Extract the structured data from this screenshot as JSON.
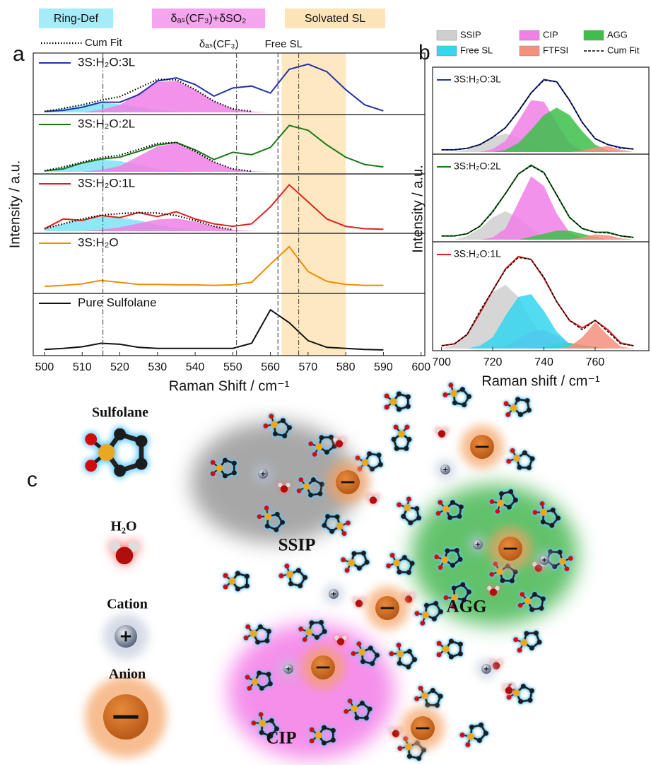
{
  "chart_data": [
    {
      "type": "line",
      "panel_label": "a",
      "xlabel": "Raman Shift / cm⁻¹",
      "ylabel": "Intensity / a.u.",
      "xlim": [
        497,
        601
      ],
      "xticks": [
        500,
        510,
        520,
        530,
        540,
        550,
        560,
        570,
        580,
        590,
        600
      ],
      "ylim": [
        0,
        1.1
      ],
      "x": [
        500,
        505,
        510,
        515,
        520,
        525,
        530,
        535,
        540,
        545,
        550,
        555,
        560,
        565,
        570,
        575,
        580,
        585,
        590
      ],
      "components": [
        {
          "name": "Ring-Def",
          "color": "#7fe3f5"
        },
        {
          "name": "δₐₛ(CF₃)+δSO₂",
          "color": "#f07fe6"
        }
      ],
      "cum_fit": "Cum Fit",
      "band": {
        "range": [
          563,
          580
        ],
        "label": "Solvated SL",
        "color": "#fbd89a"
      },
      "reference_lines": [
        {
          "value": 515.5,
          "style": "dash-dot"
        },
        {
          "value": 551,
          "style": "dash-dot",
          "label": "δₐₛ(CF₃)"
        },
        {
          "value": 562,
          "style": "dashed",
          "label": "Free SL"
        },
        {
          "value": 567.5,
          "style": "dash-dot"
        }
      ],
      "panels": [
        {
          "name": "3S:H₂O:3L",
          "color": "#2233aa",
          "values": [
            0.02,
            0.04,
            0.1,
            0.2,
            0.2,
            0.35,
            0.62,
            0.68,
            0.55,
            0.32,
            0.48,
            0.52,
            0.38,
            0.85,
            0.95,
            0.8,
            0.45,
            0.15,
            0.03
          ],
          "fits": [
            [
              0.02,
              0.08,
              0.15,
              0.19,
              0.16,
              0.1,
              0.05,
              0.02,
              0,
              0,
              0,
              0,
              0,
              0,
              0,
              0,
              0,
              0,
              0
            ],
            [
              0,
              0,
              0,
              0.05,
              0.15,
              0.38,
              0.6,
              0.62,
              0.45,
              0.22,
              0.07,
              0.02,
              0,
              0,
              0,
              0,
              0,
              0,
              0
            ]
          ],
          "cum_fit": [
            0.02,
            0.08,
            0.15,
            0.24,
            0.31,
            0.48,
            0.65,
            0.64,
            0.45,
            0.22,
            0.07,
            0.02,
            null,
            null,
            null,
            null,
            null,
            null,
            null
          ]
        },
        {
          "name": "3S:H₂O:2L",
          "color": "#1a7a1a",
          "values": [
            0.02,
            0.06,
            0.18,
            0.26,
            0.3,
            0.42,
            0.55,
            0.6,
            0.45,
            0.25,
            0.4,
            0.35,
            0.5,
            0.95,
            0.85,
            0.55,
            0.3,
            0.15,
            0.1
          ],
          "fits": [
            [
              0.02,
              0.1,
              0.2,
              0.25,
              0.22,
              0.14,
              0.06,
              0.02,
              0,
              0,
              0,
              0,
              0,
              0,
              0,
              0,
              0,
              0,
              0
            ],
            [
              0,
              0,
              0,
              0.04,
              0.12,
              0.32,
              0.52,
              0.58,
              0.42,
              0.2,
              0.06,
              0.01,
              0,
              0,
              0,
              0,
              0,
              0,
              0
            ]
          ],
          "cum_fit": [
            0.02,
            0.1,
            0.2,
            0.29,
            0.34,
            0.46,
            0.58,
            0.6,
            0.42,
            0.2,
            0.06,
            0.01,
            null,
            null,
            null,
            null,
            null,
            null,
            null
          ]
        },
        {
          "name": "3S:H₂O:1L",
          "color": "#e02020",
          "values": [
            0.05,
            0.25,
            0.22,
            0.32,
            0.28,
            0.38,
            0.3,
            0.4,
            0.25,
            0.15,
            0.1,
            0.15,
            0.5,
            0.95,
            0.6,
            0.25,
            0.1,
            0.05,
            0.04
          ],
          "fits": [
            [
              0.05,
              0.15,
              0.25,
              0.3,
              0.28,
              0.22,
              0.13,
              0.06,
              0.02,
              0,
              0,
              0,
              0,
              0,
              0,
              0,
              0,
              0,
              0
            ],
            [
              0,
              0,
              0,
              0.03,
              0.08,
              0.16,
              0.24,
              0.26,
              0.2,
              0.1,
              0.03,
              0,
              0,
              0,
              0,
              0,
              0,
              0,
              0
            ]
          ],
          "cum_fit": [
            0.05,
            0.15,
            0.25,
            0.33,
            0.36,
            0.38,
            0.37,
            0.32,
            0.22,
            0.1,
            0.03,
            null,
            null,
            null,
            null,
            null,
            null,
            null,
            null
          ]
        },
        {
          "name": "3S:H₂O",
          "color": "#f08c00",
          "values": [
            0.1,
            0.12,
            0.15,
            0.22,
            0.18,
            0.14,
            0.14,
            0.13,
            0.13,
            0.12,
            0.13,
            0.18,
            0.55,
            0.9,
            0.4,
            0.2,
            0.14,
            0.12,
            0.12
          ]
        },
        {
          "name": "Pure Sulfolane",
          "color": "#111111",
          "values": [
            0.08,
            0.1,
            0.13,
            0.2,
            0.18,
            0.12,
            0.1,
            0.1,
            0.1,
            0.1,
            0.1,
            0.2,
            0.85,
            0.6,
            0.25,
            0.12,
            0.1,
            0.08,
            0.07
          ]
        }
      ]
    },
    {
      "type": "line",
      "panel_label": "b",
      "xlabel": "Raman shift  /  cm⁻¹",
      "ylabel": "Intensity / a.u.",
      "xlim": [
        696.5,
        781
      ],
      "xticks": [
        700,
        720,
        740,
        760
      ],
      "ylim": [
        0,
        1.1
      ],
      "x": [
        700,
        705,
        710,
        715,
        720,
        725,
        730,
        735,
        740,
        745,
        750,
        755,
        760,
        765,
        770,
        775
      ],
      "components": [
        {
          "name": "SSIP",
          "color": "#cfcfcf"
        },
        {
          "name": "CIP",
          "color": "#f07fe6"
        },
        {
          "name": "AGG",
          "color": "#3cc04a"
        },
        {
          "name": "Free SL",
          "color": "#34d6f0"
        },
        {
          "name": "FTFSI",
          "color": "#f4907c"
        }
      ],
      "cum_fit": "Cum Fit",
      "panels": [
        {
          "name": "3S:H₂O:3L",
          "color": "#2233aa",
          "values": [
            0.03,
            0.03,
            0.05,
            0.1,
            0.2,
            0.33,
            0.55,
            0.8,
            0.98,
            0.95,
            0.7,
            0.4,
            0.18,
            0.1,
            0.06,
            0.04
          ],
          "fits": [
            [
              0,
              0,
              0.03,
              0.1,
              0.2,
              0.25,
              0.2,
              0.1,
              0.03,
              0,
              0,
              0,
              0,
              0,
              0,
              0
            ],
            [
              0,
              0,
              0,
              0,
              0.04,
              0.15,
              0.42,
              0.7,
              0.68,
              0.4,
              0.12,
              0.02,
              0,
              0,
              0,
              0
            ],
            [
              0,
              0,
              0,
              0,
              0,
              0.03,
              0.12,
              0.3,
              0.5,
              0.6,
              0.5,
              0.28,
              0.1,
              0.02,
              0,
              0
            ],
            null,
            [
              0,
              0,
              0,
              0,
              0,
              0,
              0,
              0,
              0,
              0,
              0,
              0.02,
              0.06,
              0.08,
              0.03,
              0
            ]
          ],
          "cum_fit": [
            0.03,
            0.03,
            0.05,
            0.1,
            0.2,
            0.33,
            0.55,
            0.8,
            0.97,
            0.95,
            0.7,
            0.4,
            0.18,
            0.1,
            0.05,
            0.04
          ]
        },
        {
          "name": "3S:H₂O:2L",
          "color": "#1a7a1a",
          "values": [
            0.05,
            0.05,
            0.08,
            0.18,
            0.38,
            0.62,
            0.88,
            1.0,
            0.9,
            0.6,
            0.3,
            0.15,
            0.1,
            0.1,
            0.05,
            0.03
          ],
          "fits": [
            [
              0,
              0,
              0.05,
              0.15,
              0.3,
              0.38,
              0.3,
              0.15,
              0.05,
              0,
              0,
              0,
              0,
              0,
              0,
              0
            ],
            [
              0,
              0,
              0,
              0,
              0.03,
              0.15,
              0.5,
              0.85,
              0.72,
              0.35,
              0.1,
              0.02,
              0,
              0,
              0,
              0
            ],
            [
              0,
              0,
              0,
              0,
              0,
              0,
              0,
              0.04,
              0.08,
              0.12,
              0.12,
              0.08,
              0.04,
              0,
              0,
              0
            ],
            null,
            [
              0,
              0,
              0,
              0,
              0,
              0,
              0,
              0,
              0,
              0,
              0,
              0.03,
              0.07,
              0.06,
              0.02,
              0
            ]
          ],
          "cum_fit": [
            0.05,
            0.05,
            0.08,
            0.18,
            0.37,
            0.62,
            0.88,
            0.99,
            0.9,
            0.6,
            0.3,
            0.15,
            0.1,
            0.09,
            0.05,
            0.03
          ]
        },
        {
          "name": "3S:H₂O:1L",
          "color": "#e02020",
          "values": [
            0.03,
            0.05,
            0.15,
            0.38,
            0.62,
            0.85,
            0.98,
            0.95,
            0.75,
            0.5,
            0.3,
            0.22,
            0.3,
            0.2,
            0.06,
            0.03
          ],
          "fits": [
            [
              0,
              0.04,
              0.15,
              0.38,
              0.6,
              0.68,
              0.55,
              0.3,
              0.12,
              0.03,
              0,
              0,
              0,
              0,
              0,
              0
            ],
            [
              0,
              0,
              0,
              0,
              0,
              0.03,
              0.1,
              0.18,
              0.2,
              0.14,
              0.05,
              0,
              0,
              0,
              0,
              0
            ],
            [
              0,
              0,
              0,
              0,
              0,
              0,
              0,
              0,
              0.02,
              0.05,
              0.06,
              0.04,
              0.02,
              0,
              0,
              0
            ],
            [
              0,
              0,
              0,
              0.03,
              0.12,
              0.35,
              0.55,
              0.58,
              0.4,
              0.18,
              0.05,
              0,
              0,
              0,
              0,
              0
            ],
            [
              0,
              0,
              0,
              0,
              0,
              0,
              0,
              0,
              0,
              0,
              0.02,
              0.12,
              0.28,
              0.14,
              0.02,
              0
            ]
          ],
          "cum_fit": [
            0.03,
            0.05,
            0.15,
            0.4,
            0.62,
            0.84,
            0.97,
            0.95,
            0.76,
            0.5,
            0.3,
            0.2,
            0.3,
            0.18,
            0.05,
            0.03
          ]
        }
      ]
    }
  ],
  "diagram": {
    "panel_label": "c",
    "legend": {
      "sulfolane": "Sulfolane",
      "water": "H₂O",
      "cation": "Cation",
      "anion": "Anion"
    },
    "clusters": {
      "ssip": "SSIP",
      "agg": "AGG",
      "cip": "CIP"
    }
  }
}
